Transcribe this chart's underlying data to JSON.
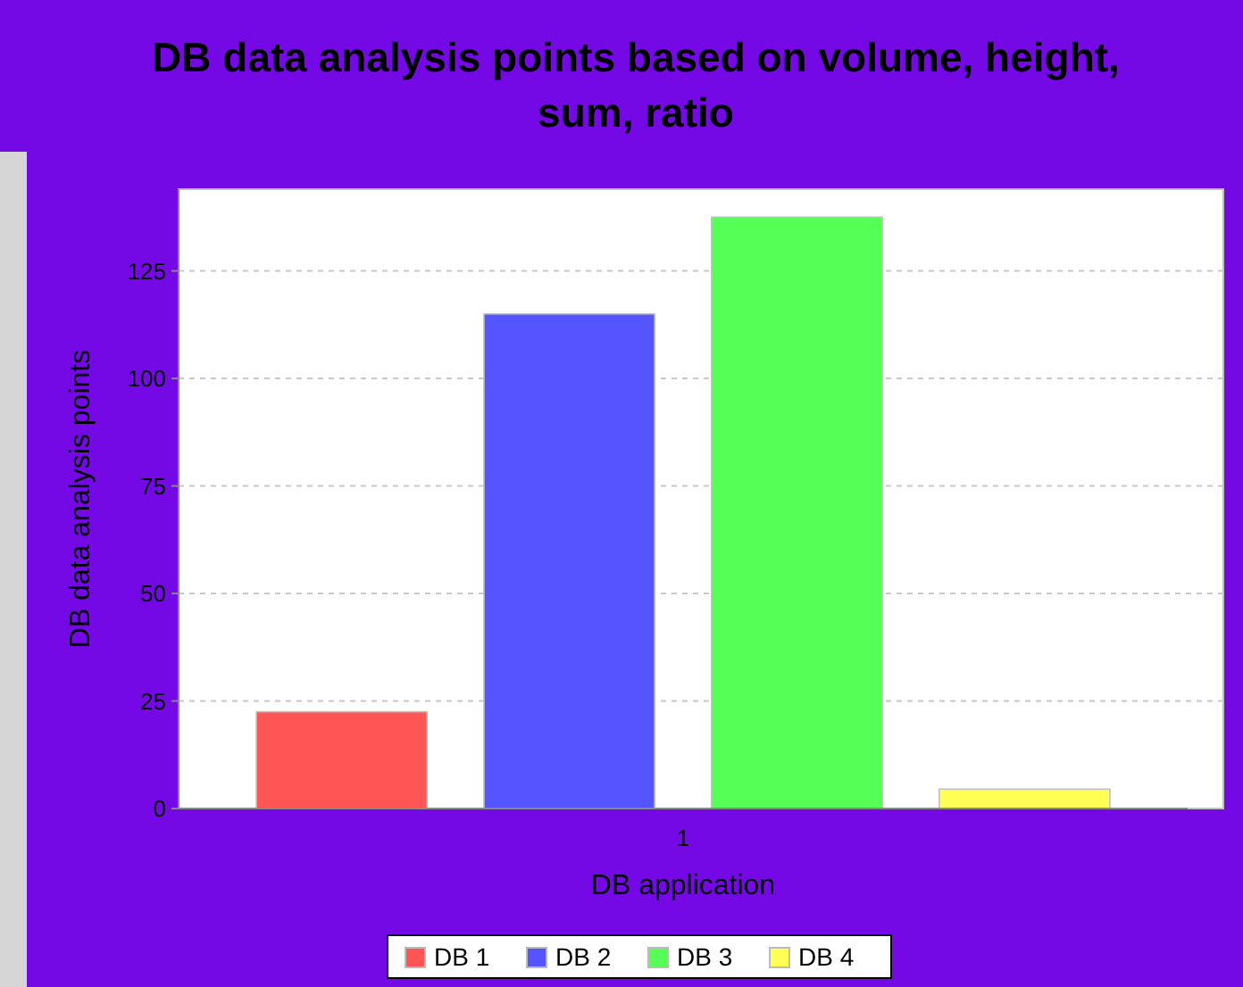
{
  "chart_data": {
    "type": "bar",
    "title": "DB data analysis points based on volume, height, sum, ratio",
    "xlabel": "DB application",
    "ylabel": "DB data analysis points",
    "categories": [
      "1"
    ],
    "series": [
      {
        "name": "DB 1",
        "color": "#ff5555",
        "values": [
          22.5
        ]
      },
      {
        "name": "DB 2",
        "color": "#5555ff",
        "values": [
          115
        ]
      },
      {
        "name": "DB 3",
        "color": "#55ff55",
        "values": [
          137.5
        ]
      },
      {
        "name": "DB 4",
        "color": "#ffff55",
        "values": [
          4.5
        ]
      }
    ],
    "ylim": [
      0,
      144
    ],
    "yticks": [
      0,
      25,
      50,
      75,
      100,
      125
    ],
    "grid": "y",
    "legend": "bottom"
  }
}
